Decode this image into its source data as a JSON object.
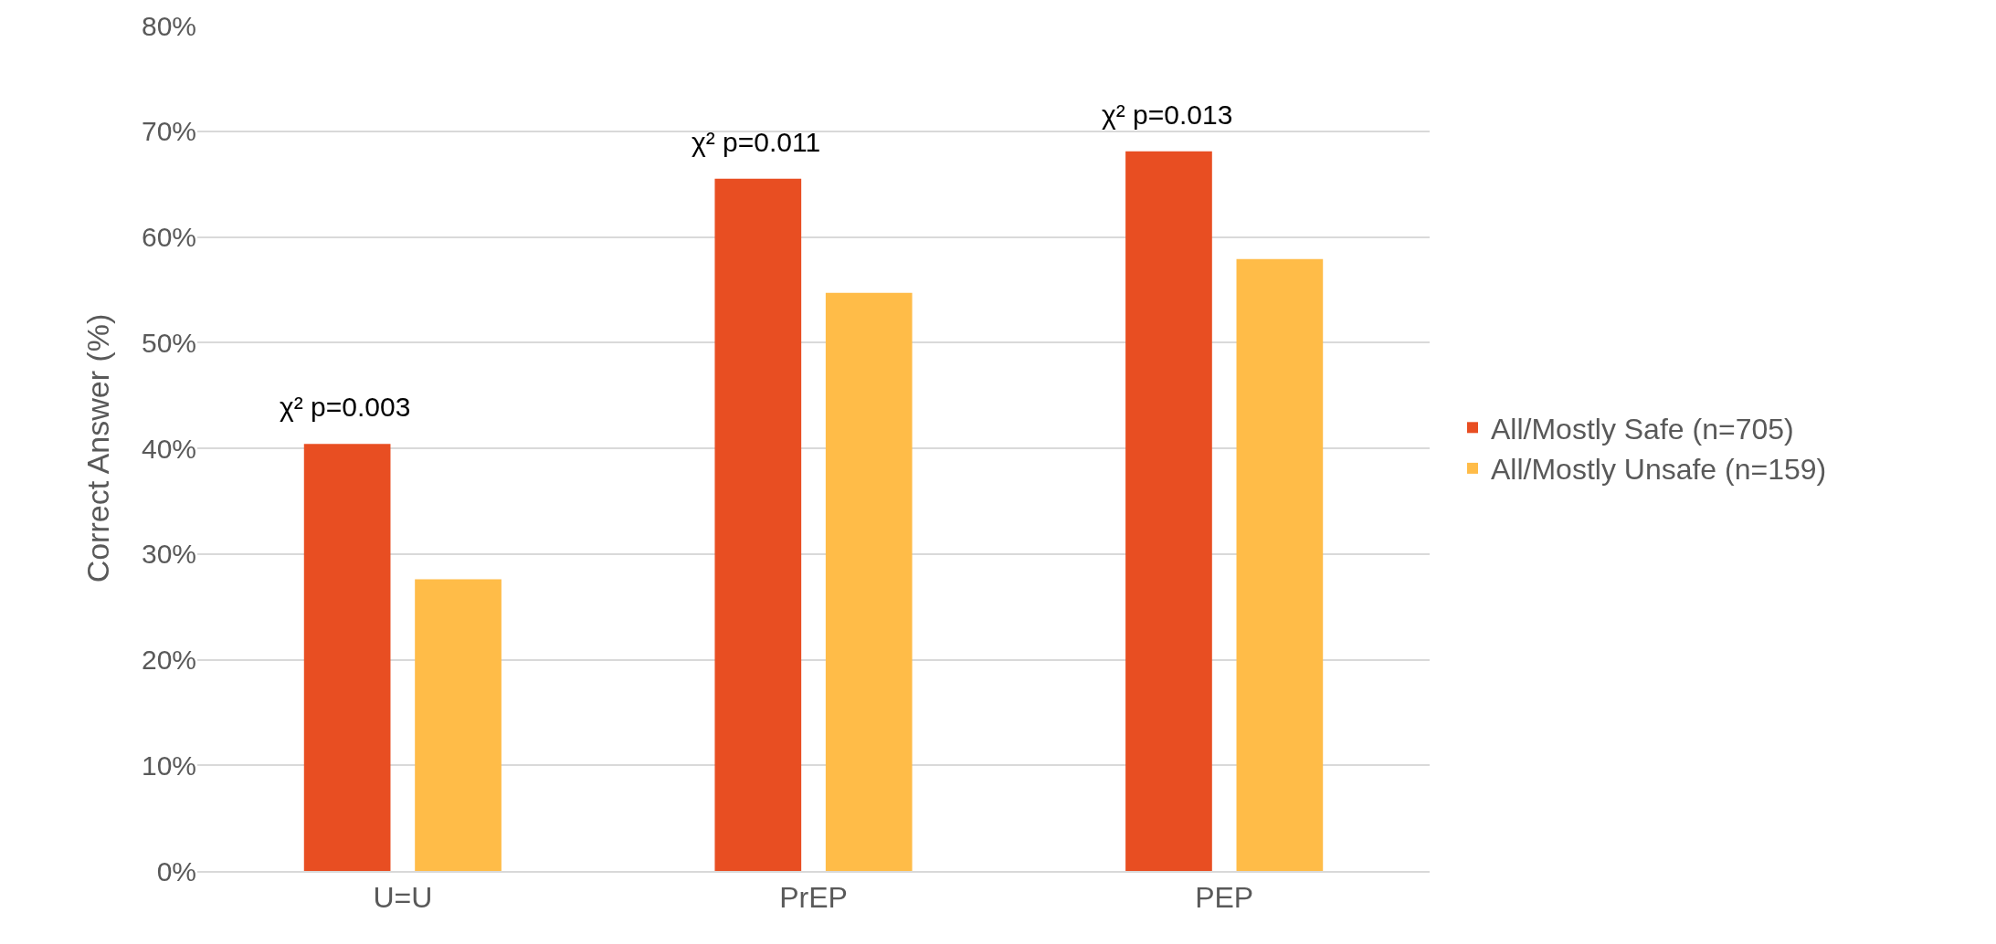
{
  "chart_data": {
    "type": "bar",
    "ylabel": "Correct Answer (%)",
    "categories": [
      "U=U",
      "PrEP",
      "PEP"
    ],
    "series": [
      {
        "name": "All/Mostly Safe (n=705)",
        "color": "#e84e22",
        "values": [
          40.4,
          65.5,
          68.1
        ]
      },
      {
        "name": "All/Mostly Unsafe (n=159)",
        "color": "#ffbc48",
        "values": [
          27.6,
          54.7,
          57.9
        ]
      }
    ],
    "ylim": [
      0,
      80
    ],
    "yticks": [
      {
        "value": 0,
        "label": "0%"
      },
      {
        "value": 10,
        "label": "10%"
      },
      {
        "value": 20,
        "label": "20%"
      },
      {
        "value": 30,
        "label": "30%"
      },
      {
        "value": 40,
        "label": "40%"
      },
      {
        "value": 50,
        "label": "50%"
      },
      {
        "value": 60,
        "label": "60%"
      },
      {
        "value": 70,
        "label": "70%"
      },
      {
        "value": 80,
        "label": "80%"
      }
    ],
    "grid": "y",
    "legend": "right",
    "annotations": [
      "χ² p=0.003",
      "χ² p=0.011",
      "χ² p=0.013"
    ]
  }
}
